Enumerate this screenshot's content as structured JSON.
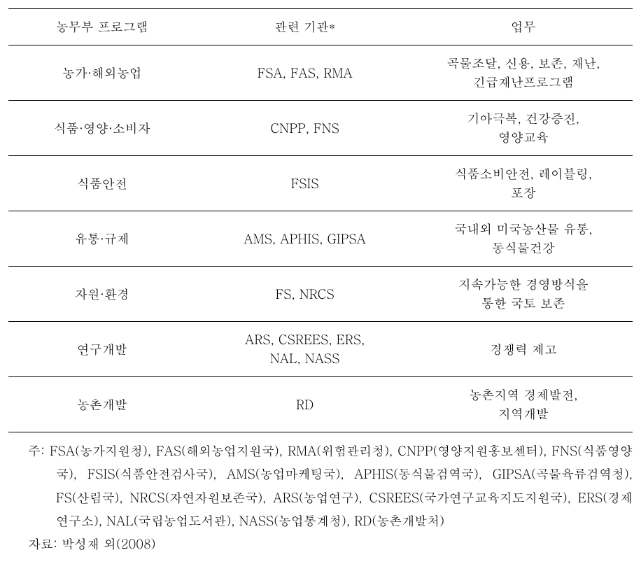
{
  "table": {
    "headers": {
      "col1": "농무부 프로그램",
      "col2": "관련 기관*",
      "col3": "업무"
    },
    "rows": [
      {
        "program": "농가·해외농업",
        "agencies": "FSA, FAS, RMA",
        "duties": "곡물조달, 신용, 보존, 재난,\n긴급재난프로그램"
      },
      {
        "program": "식품·영양·소비자",
        "agencies": "CNPP, FNS",
        "duties": "기아극복, 건강증진,\n영양교육"
      },
      {
        "program": "식품안전",
        "agencies": "FSIS",
        "duties": "식품소비안전, 레이블링,\n포장"
      },
      {
        "program": "유통·규제",
        "agencies": "AMS, APHIS, GIPSA",
        "duties": "국내외 미국농산물 유통,\n동식물건강"
      },
      {
        "program": "자원·환경",
        "agencies": "FS, NRCS",
        "duties": "지속가능한 경영방식을\n통한 국토 보존"
      },
      {
        "program": "연구개발",
        "agencies": "ARS, CSREES, ERS,\nNAL, NASS",
        "duties": "경쟁력 제고"
      },
      {
        "program": "농촌개발",
        "agencies": "RD",
        "duties": "농촌지역 경제발전,\n지역개발"
      }
    ]
  },
  "notes": {
    "note_prefix": "주:",
    "note_text": "FSA(농가지원청), FAS(해외농업지원국), RMA(위험관리청), CNPP(영양지원홍보센터), FNS(식품영양국), FSIS(식품안전검사국), AMS(농업마케팅국), APHIS(동식물검역국), GIPSA(곡물육류검역청), FS(산림국), NRCS(자연자원보존국), ARS(농업연구), CSREES(국가연구교육지도지원국), ERS(경제연구소), NAL(국립농업도서관), NASS(농업통계청), RD(농촌개발처)",
    "source_prefix": "자료:",
    "source_text": "박성재 외(2008)"
  },
  "style": {
    "text_color": "#000000",
    "background_color": "#ffffff",
    "border_color": "#000000",
    "font_size": 18,
    "line_height": 1.5,
    "notes_line_height": 1.85
  }
}
